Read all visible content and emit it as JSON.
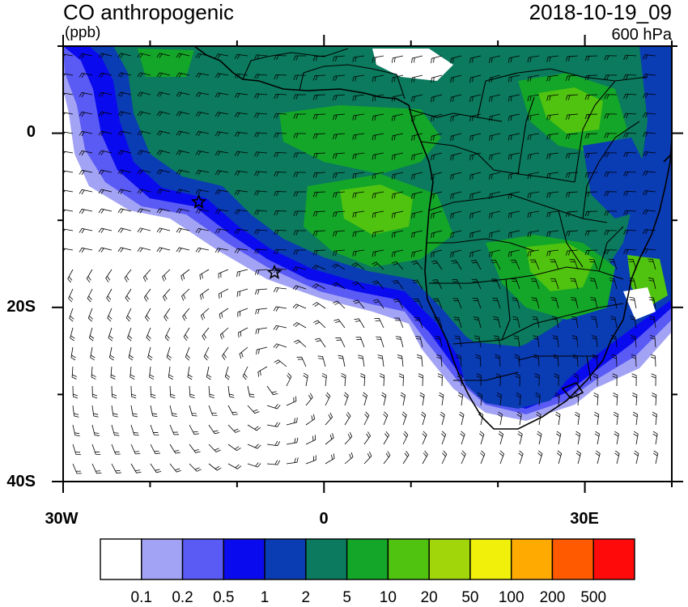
{
  "title": {
    "variable": "CO anthropogenic",
    "units": "(ppb)",
    "timestamp": "2018-10-19_09",
    "level": "600 hPa"
  },
  "axes": {
    "lat_labels": [
      "0",
      "20S",
      "40S"
    ],
    "lon_labels": [
      "30W",
      "0",
      "30E"
    ]
  },
  "map": {
    "lon_range": [
      -30,
      40
    ],
    "lat_range": [
      -40,
      10
    ],
    "field": "CO concentration (ppb)",
    "overlay": "wind barbs",
    "markers": [
      {
        "type": "star-icon",
        "lon": -14.4,
        "lat": -7.9
      },
      {
        "type": "star-icon",
        "lon": -5.7,
        "lat": -16.0
      }
    ]
  },
  "colorbar": {
    "colors": [
      "#ffffff",
      "#a3a3f5",
      "#5a5af5",
      "#0a0aef",
      "#0a3cb4",
      "#0b7a5e",
      "#14a628",
      "#4fc30f",
      "#a0d60a",
      "#f0f00a",
      "#ffaa00",
      "#ff5a00",
      "#ff0a0a"
    ],
    "labels": [
      "0.1",
      "0.2",
      "0.5",
      "1",
      "2",
      "5",
      "10",
      "20",
      "50",
      "100",
      "200",
      "500"
    ]
  }
}
